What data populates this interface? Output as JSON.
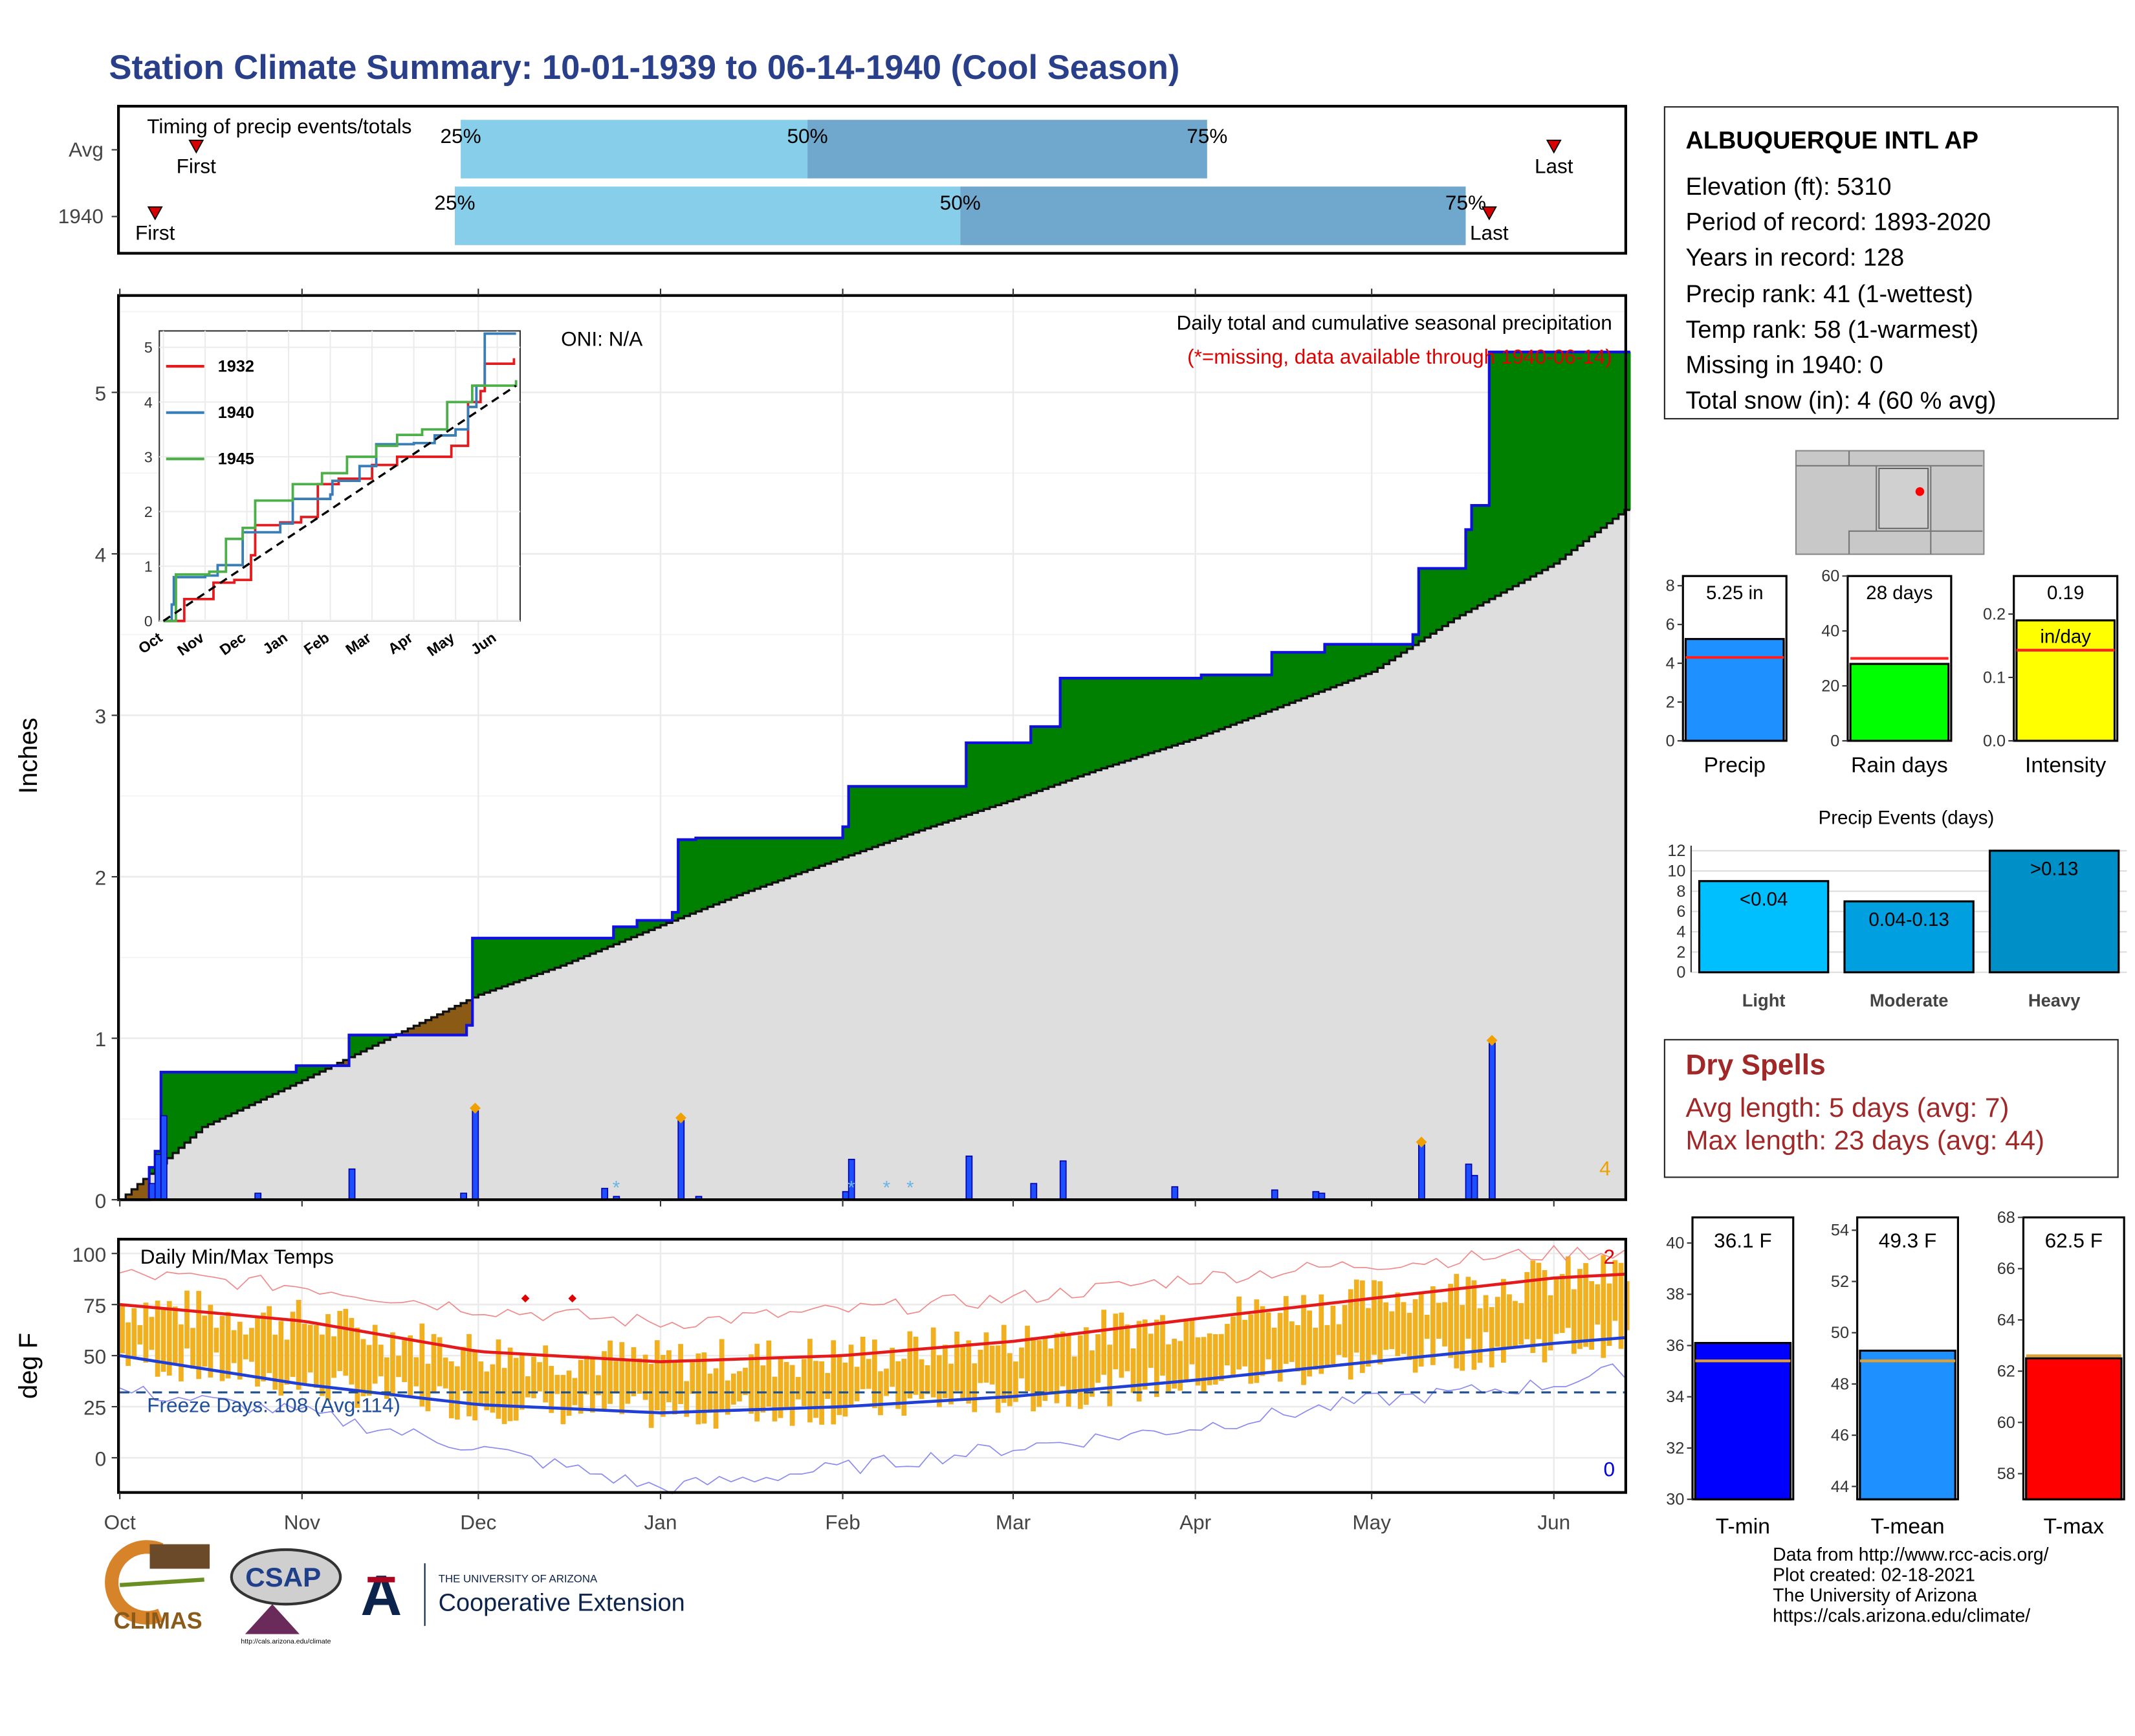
{
  "title": "Station Climate Summary: 10-01-1939 to 06-14-1940 (Cool Season)",
  "timing": {
    "caption": "Timing of precip events/totals",
    "rows": [
      {
        "label": "Avg",
        "first_label": "First",
        "last_label": "Last",
        "first_date": "1939-10-14",
        "last_date": "1940-06-01",
        "p25": "1939-11-28",
        "p50": "1940-01-26",
        "p75": "1940-04-03"
      },
      {
        "label": "1940",
        "first_label": "First",
        "last_label": "Last",
        "first_date": "1939-10-07",
        "last_date": "1940-05-21",
        "p25": "1939-11-27",
        "p50": "1940-02-21",
        "p75": "1940-05-17"
      }
    ],
    "pct_labels": [
      "25%",
      "50%",
      "75%"
    ],
    "colors": {
      "light": "#87ceeb",
      "dark": "#6fa8cc",
      "marker": "#d60000"
    }
  },
  "main_chart": {
    "ylabel": "Inches",
    "oni": "ONI: N/A",
    "caption1": "Daily total and cumulative seasonal precipitation",
    "caption2": "(*=missing, data available through 1940-06-14)",
    "corner_value": "4",
    "y_ticks": [
      "0",
      "1",
      "2",
      "3",
      "4",
      "5"
    ],
    "x_ticks": [
      "Oct",
      "Nov",
      "Dec",
      "Jan",
      "Feb",
      "Mar",
      "Apr",
      "May",
      "Jun"
    ]
  },
  "chart_data": [
    {
      "type": "area",
      "name": "cumulative_precip",
      "ylim": [
        0,
        5.6
      ],
      "xlim": [
        "1939-10-01",
        "1940-06-14"
      ],
      "cumulative_1940": [
        [
          "1939-10-01",
          0
        ],
        [
          "1939-10-06",
          0.2
        ],
        [
          "1939-10-07",
          0.3
        ],
        [
          "1939-10-08",
          0.79
        ],
        [
          "1939-10-31",
          0.83
        ],
        [
          "1939-11-08",
          0.83
        ],
        [
          "1939-11-09",
          1.02
        ],
        [
          "1939-11-20",
          1.02
        ],
        [
          "1939-11-28",
          1.02
        ],
        [
          "1939-11-29",
          1.08
        ],
        [
          "1939-11-30",
          1.62
        ],
        [
          "1939-12-24",
          1.69
        ],
        [
          "1939-12-28",
          1.73
        ],
        [
          "1940-01-03",
          1.78
        ],
        [
          "1940-01-04",
          2.23
        ],
        [
          "1940-01-07",
          2.24
        ],
        [
          "1940-02-01",
          2.31
        ],
        [
          "1940-02-02",
          2.56
        ],
        [
          "1940-02-21",
          2.56
        ],
        [
          "1940-02-22",
          2.83
        ],
        [
          "1940-03-04",
          2.93
        ],
        [
          "1940-03-09",
          3.23
        ],
        [
          "1940-03-19",
          3.23
        ],
        [
          "1940-03-28",
          3.23
        ],
        [
          "1940-04-02",
          3.25
        ],
        [
          "1940-04-14",
          3.33
        ],
        [
          "1940-04-14",
          3.39
        ],
        [
          "1940-04-17",
          3.39
        ],
        [
          "1940-04-23",
          3.44
        ],
        [
          "1940-05-08",
          3.5
        ],
        [
          "1940-05-09",
          3.91
        ],
        [
          "1940-05-17",
          4.15
        ],
        [
          "1940-05-18",
          4.3
        ],
        [
          "1940-05-20",
          4.3
        ],
        [
          "1940-05-21",
          5.25
        ],
        [
          "1940-06-14",
          5.25
        ]
      ],
      "average": [
        [
          "1939-10-01",
          0
        ],
        [
          "1939-10-15",
          0.45
        ],
        [
          "1939-11-01",
          0.74
        ],
        [
          "1939-11-15",
          0.99
        ],
        [
          "1939-12-01",
          1.27
        ],
        [
          "1939-12-15",
          1.45
        ],
        [
          "1940-01-01",
          1.7
        ],
        [
          "1940-01-15",
          1.9
        ],
        [
          "1940-02-01",
          2.12
        ],
        [
          "1940-02-15",
          2.3
        ],
        [
          "1940-03-01",
          2.48
        ],
        [
          "1940-03-15",
          2.66
        ],
        [
          "1940-04-01",
          2.86
        ],
        [
          "1940-04-15",
          3.05
        ],
        [
          "1940-05-01",
          3.27
        ],
        [
          "1940-05-15",
          3.6
        ],
        [
          "1940-06-01",
          3.94
        ],
        [
          "1940-06-14",
          4.3
        ]
      ],
      "daily_1940": [
        [
          "1939-10-06",
          0.1
        ],
        [
          "1939-10-07",
          0.28
        ],
        [
          "1939-10-08",
          0.52
        ],
        [
          "1939-10-24",
          0.04
        ],
        [
          "1939-11-09",
          0.19
        ],
        [
          "1939-11-28",
          0.04
        ],
        [
          "1939-11-30",
          0.55
        ],
        [
          "1939-12-22",
          0.07
        ],
        [
          "1939-12-24",
          0.02
        ],
        [
          "1940-01-04",
          0.49
        ],
        [
          "1940-01-07",
          0.02
        ],
        [
          "1940-02-01",
          0.05
        ],
        [
          "1940-02-02",
          0.25
        ],
        [
          "1940-02-22",
          0.27
        ],
        [
          "1940-03-04",
          0.1
        ],
        [
          "1940-03-09",
          0.24
        ],
        [
          "1940-03-28",
          0.08
        ],
        [
          "1940-04-14",
          0.06
        ],
        [
          "1940-04-21",
          0.05
        ],
        [
          "1940-04-22",
          0.04
        ],
        [
          "1940-05-09",
          0.34
        ],
        [
          "1940-05-17",
          0.22
        ],
        [
          "1940-05-18",
          0.15
        ],
        [
          "1940-05-21",
          0.97
        ]
      ],
      "snow_dates": [
        "1939-12-24",
        "1940-02-02",
        "1940-02-08",
        "1940-02-12"
      ],
      "diamond_dates": [
        "1939-11-30",
        "1940-01-04",
        "1940-05-09",
        "1940-05-21"
      ]
    },
    {
      "type": "line",
      "name": "inset_cumulative",
      "x_ticks": [
        "Oct",
        "Nov",
        "Dec",
        "Jan",
        "Feb",
        "Mar",
        "Apr",
        "May",
        "Jun"
      ],
      "y_ticks": [
        "0",
        "1",
        "2",
        "3",
        "4",
        "5"
      ],
      "ylim": [
        0,
        5.2
      ],
      "series": [
        {
          "name": "1932",
          "color": "#e41a1c",
          "values": [
            [
              0,
              0
            ],
            [
              0.5,
              0.4
            ],
            [
              1.1,
              0.4
            ],
            [
              1.2,
              0.7
            ],
            [
              1.7,
              0.75
            ],
            [
              2.1,
              1.2
            ],
            [
              2.2,
              1.75
            ],
            [
              2.8,
              1.8
            ],
            [
              3.3,
              1.9
            ],
            [
              3.7,
              2.5
            ],
            [
              4.2,
              2.6
            ],
            [
              5.0,
              2.85
            ],
            [
              5.6,
              3.0
            ],
            [
              6.3,
              3.0
            ],
            [
              6.9,
              3.2
            ],
            [
              7.3,
              4.0
            ],
            [
              7.6,
              4.2
            ],
            [
              7.7,
              4.7
            ],
            [
              8.4,
              4.8
            ]
          ]
        },
        {
          "name": "1940",
          "color": "#377eb8",
          "values": [
            [
              0,
              0
            ],
            [
              0.2,
              0.3
            ],
            [
              0.25,
              0.8
            ],
            [
              1.0,
              0.83
            ],
            [
              1.3,
              1.02
            ],
            [
              1.9,
              1.62
            ],
            [
              2.8,
              1.78
            ],
            [
              3.1,
              2.23
            ],
            [
              4.0,
              2.31
            ],
            [
              4.05,
              2.56
            ],
            [
              4.7,
              2.83
            ],
            [
              5.1,
              3.23
            ],
            [
              6.0,
              3.25
            ],
            [
              6.5,
              3.39
            ],
            [
              7.0,
              3.5
            ],
            [
              7.3,
              3.91
            ],
            [
              7.5,
              4.3
            ],
            [
              7.7,
              5.25
            ],
            [
              8.45,
              5.25
            ]
          ]
        },
        {
          "name": "1945",
          "color": "#4daf4a",
          "values": [
            [
              0,
              0
            ],
            [
              0.3,
              0.85
            ],
            [
              1.1,
              0.9
            ],
            [
              1.5,
              1.5
            ],
            [
              1.9,
              1.7
            ],
            [
              2.2,
              2.2
            ],
            [
              3.1,
              2.5
            ],
            [
              3.8,
              2.7
            ],
            [
              4.4,
              3.0
            ],
            [
              5.1,
              3.2
            ],
            [
              5.6,
              3.4
            ],
            [
              6.2,
              3.5
            ],
            [
              6.8,
              4.0
            ],
            [
              7.2,
              4.0
            ],
            [
              7.4,
              4.3
            ],
            [
              8.0,
              4.3
            ],
            [
              8.45,
              4.4
            ]
          ]
        },
        {
          "name": "average",
          "color": "#000000",
          "values": [
            [
              0,
              0
            ],
            [
              8.45,
              4.3
            ]
          ]
        }
      ]
    },
    {
      "type": "line",
      "name": "daily_temps",
      "title": "Daily Min/Max Temps",
      "ylabel": "deg F",
      "y_ticks": [
        "0",
        "25",
        "50",
        "75",
        "100"
      ],
      "ylim": [
        -17,
        107
      ],
      "freeze_label": "Freeze Days: 108 (Avg:114)",
      "freeze_line": 32,
      "corner_top": "2",
      "corner_bottom": "0",
      "x_ticks": [
        "Oct",
        "Nov",
        "Dec",
        "Jan",
        "Feb",
        "Mar",
        "Apr",
        "May",
        "Jun"
      ],
      "avg_max": [
        [
          0,
          75
        ],
        [
          31,
          67
        ],
        [
          61,
          52
        ],
        [
          92,
          47
        ],
        [
          123,
          50
        ],
        [
          152,
          57
        ],
        [
          183,
          68
        ],
        [
          213,
          78
        ],
        [
          244,
          88
        ],
        [
          257,
          90
        ]
      ],
      "avg_min": [
        [
          0,
          50
        ],
        [
          31,
          36
        ],
        [
          61,
          26
        ],
        [
          92,
          22
        ],
        [
          123,
          25
        ],
        [
          152,
          30
        ],
        [
          183,
          38
        ],
        [
          213,
          47
        ],
        [
          244,
          56
        ],
        [
          257,
          59
        ]
      ],
      "record_max": [
        [
          0,
          90
        ],
        [
          31,
          84
        ],
        [
          61,
          73
        ],
        [
          92,
          66
        ],
        [
          123,
          72
        ],
        [
          152,
          78
        ],
        [
          183,
          88
        ],
        [
          213,
          95
        ],
        [
          244,
          100
        ],
        [
          257,
          101
        ]
      ],
      "record_min": [
        [
          0,
          33
        ],
        [
          31,
          22
        ],
        [
          61,
          5
        ],
        [
          92,
          -15
        ],
        [
          123,
          -5
        ],
        [
          152,
          5
        ],
        [
          183,
          15
        ],
        [
          213,
          28
        ],
        [
          244,
          36
        ],
        [
          257,
          44
        ]
      ],
      "series_colors": {
        "bars": "#f0b020",
        "max": "#e41a1c",
        "min": "#1f3fd6"
      }
    }
  ],
  "station": {
    "name": "ALBUQUERQUE INTL AP",
    "lines": [
      "Elevation (ft): 5310",
      "Period of record: 1893-2020",
      "Years in record: 128",
      "Precip rank: 41 (1-wettest)",
      "Temp rank: 58 (1-warmest)",
      "Missing in 1940: 0",
      "Total snow (in): 4 (60 % avg)"
    ]
  },
  "mini_bars": [
    {
      "label": "Precip",
      "value_text": "5.25 in",
      "value": 5.25,
      "avg": 4.3,
      "ymax": 8.5,
      "ticks": [
        "0",
        "2",
        "4",
        "6",
        "8"
      ],
      "tick_vals": [
        0,
        2,
        4,
        6,
        8
      ],
      "color": "#1e90ff"
    },
    {
      "label": "Rain days",
      "value_text": "28 days",
      "value": 28,
      "avg": 30,
      "ymax": 60,
      "ticks": [
        "0",
        "20",
        "40",
        "60"
      ],
      "tick_vals": [
        0,
        20,
        40,
        60
      ],
      "color": "#00ff00"
    },
    {
      "label": "Intensity",
      "value_text": "0.19",
      "value_text2": "in/day",
      "value": 0.19,
      "avg": 0.143,
      "ymax": 0.26,
      "ticks": [
        "0.0",
        "0.1",
        "0.2"
      ],
      "tick_vals": [
        0,
        0.1,
        0.2
      ],
      "color": "#ffff00"
    }
  ],
  "events": {
    "title": "Precip Events (days)",
    "ticks": [
      "0",
      "2",
      "4",
      "6",
      "8",
      "10",
      "12"
    ],
    "categories": [
      "Light",
      "Moderate",
      "Heavy"
    ],
    "bar_labels": [
      "<0.04",
      "0.04-0.13",
      ">0.13"
    ],
    "values": [
      9,
      7,
      12
    ],
    "colors": [
      "#00bfff",
      "#00a0e0",
      "#0090c8"
    ]
  },
  "dry_spells": {
    "title": "Dry Spells",
    "avg_line": "Avg length: 5 days (avg: 7)",
    "max_line": "Max length: 23 days (avg: 44)"
  },
  "temp_bars": [
    {
      "label": "T-min",
      "value_text": "36.1 F",
      "value": 36.1,
      "avg": 35.4,
      "ymin": 30,
      "ymax": 41,
      "ticks": [
        "30",
        "32",
        "34",
        "36",
        "38",
        "40"
      ],
      "tick_vals": [
        30,
        32,
        34,
        36,
        38,
        40
      ],
      "color": "#0000ff"
    },
    {
      "label": "T-mean",
      "value_text": "49.3 F",
      "value": 49.3,
      "avg": 48.9,
      "ymin": 43.5,
      "ymax": 54.5,
      "ticks": [
        "44",
        "46",
        "48",
        "50",
        "52",
        "54"
      ],
      "tick_vals": [
        44,
        46,
        48,
        50,
        52,
        54
      ],
      "color": "#1e90ff"
    },
    {
      "label": "T-max",
      "value_text": "62.5 F",
      "value": 62.5,
      "avg": 62.6,
      "ymin": 57,
      "ymax": 68,
      "ticks": [
        "58",
        "60",
        "62",
        "64",
        "66",
        "68"
      ],
      "tick_vals": [
        58,
        60,
        62,
        64,
        66,
        68
      ],
      "color": "#ff0000"
    }
  ],
  "footer": {
    "lines": [
      "Data from http://www.rcc-acis.org/",
      "Plot created: 02-18-2021",
      "The University of Arizona",
      "https://cals.arizona.edu/climate/"
    ],
    "climas": "CLIMAS",
    "csap": "CSAP",
    "csap_url": "http://cals.arizona.edu/climate",
    "ua_top": "THE UNIVERSITY OF ARIZONA",
    "ua_bottom": "Cooperative Extension"
  }
}
